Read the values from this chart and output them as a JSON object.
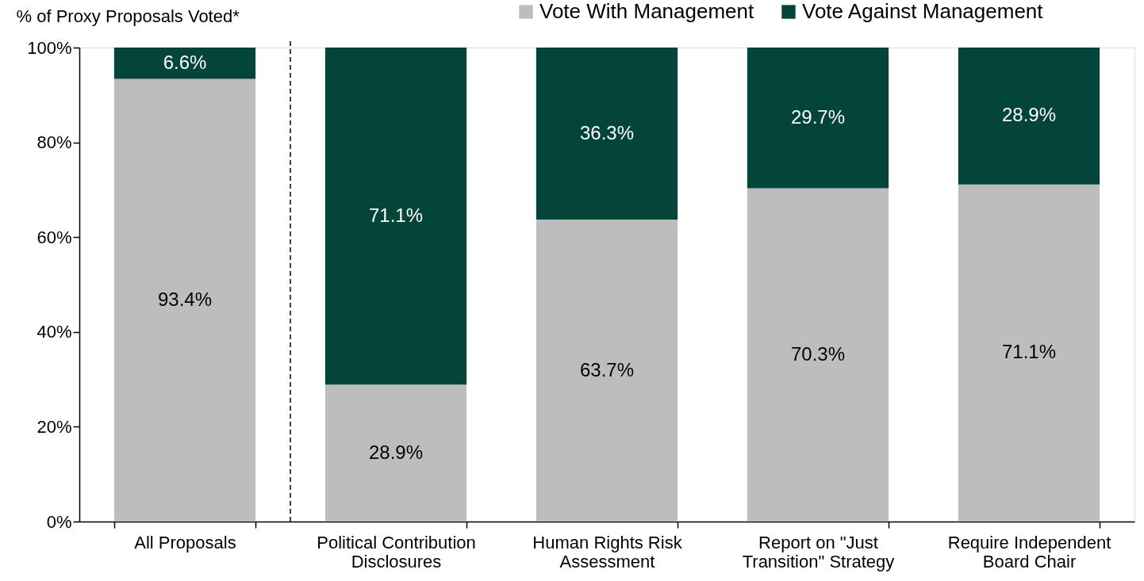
{
  "chart_data": {
    "type": "bar",
    "stacked": true,
    "ylabel": "% of Proxy Proposals Voted*",
    "categories": [
      "All Proposals",
      "Political Contribution\nDisclosures",
      "Human Rights Risk\nAssessment",
      "Report on \"Just\nTransition\" Strategy",
      "Require Independent\nBoard Chair"
    ],
    "series": [
      {
        "name": "Vote With Management",
        "color": "#bcbdbc",
        "values": [
          93.4,
          28.9,
          63.7,
          70.3,
          71.1
        ],
        "value_labels": [
          "93.4%",
          "28.9%",
          "63.7%",
          "70.3%",
          "71.1%"
        ]
      },
      {
        "name": "Vote Against Management",
        "color": "#04453a",
        "values": [
          6.6,
          71.1,
          36.3,
          29.7,
          28.9
        ],
        "value_labels": [
          "6.6%",
          "71.1%",
          "36.3%",
          "29.7%",
          "28.9%"
        ]
      }
    ],
    "ylim": [
      0,
      100
    ],
    "yticks": [
      {
        "value": 0,
        "label": "0%"
      },
      {
        "value": 20,
        "label": "20%"
      },
      {
        "value": 40,
        "label": "40%"
      },
      {
        "value": 60,
        "label": "60%"
      },
      {
        "value": 80,
        "label": "80%"
      },
      {
        "value": 100,
        "label": "100%"
      }
    ],
    "grid": false,
    "legend": "top right"
  }
}
